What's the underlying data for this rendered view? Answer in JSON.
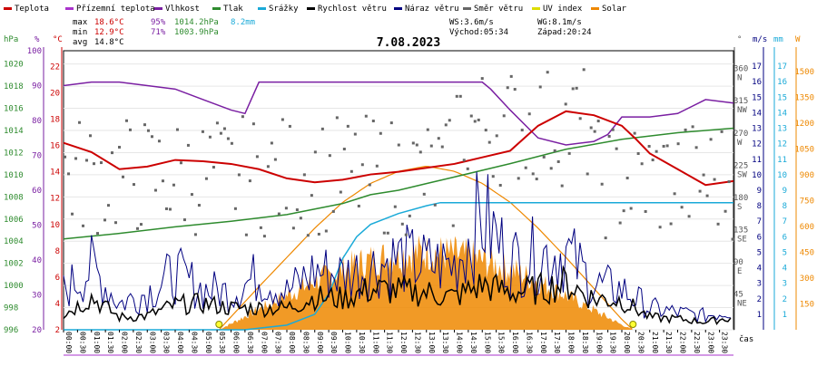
{
  "legend": [
    {
      "label": "Teplota",
      "color": "#cc0000"
    },
    {
      "label": "Přízemní teplota",
      "color": "#aa33cc"
    },
    {
      "label": "Vlhkost",
      "color": "#7a1fa2"
    },
    {
      "label": "Tlak",
      "color": "#2e8b2e"
    },
    {
      "label": "Srážky",
      "color": "#1aaad8"
    },
    {
      "label": "Rychlost větru",
      "color": "#000000"
    },
    {
      "label": "Náraz větru",
      "color": "#000080"
    },
    {
      "label": "Směr větru",
      "color": "#666666"
    },
    {
      "label": "UV index",
      "color": "#dddd00"
    },
    {
      "label": "Solar",
      "color": "#ee8800"
    }
  ],
  "stats": {
    "max_label": "max",
    "max_temp": "18.6°C",
    "max_hum": "95%",
    "max_press": "1014.2hPa",
    "rain": "8.2mm",
    "min_label": "min",
    "min_temp": "12.9°C",
    "min_hum": "71%",
    "min_press": "1003.9hPa",
    "avg_label": "avg",
    "avg_temp": "14.8°C",
    "ws": "WS:3.6m/s",
    "wg": "WG:8.1m/s",
    "sunrise": "Východ:05:34",
    "sunset": "Západ:20:24"
  },
  "date": "7.08.2023",
  "xaxis_label": "čas",
  "unit_labels": {
    "hpa": "hPa",
    "pct": "%",
    "degc": "°C",
    "deg": "°",
    "ms": "m/s",
    "mm": "mm",
    "w": "W"
  },
  "chart_data": {
    "type": "line",
    "title": "7.08.2023",
    "x_ticks": [
      "00:00",
      "00:30",
      "01:00",
      "01:30",
      "02:00",
      "02:30",
      "03:00",
      "03:30",
      "04:00",
      "04:30",
      "05:00",
      "05:30",
      "06:00",
      "06:30",
      "07:00",
      "07:30",
      "08:00",
      "08:30",
      "09:00",
      "09:30",
      "10:00",
      "10:30",
      "11:00",
      "11:30",
      "12:00",
      "12:30",
      "13:00",
      "13:30",
      "14:00",
      "14:30",
      "15:00",
      "15:30",
      "16:00",
      "16:30",
      "17:00",
      "17:30",
      "18:00",
      "18:30",
      "19:00",
      "19:30",
      "20:00",
      "20:30",
      "21:00",
      "21:30",
      "22:00",
      "22:30",
      "23:00",
      "23:30"
    ],
    "axes": {
      "pressure": {
        "label": "hPa",
        "ticks": [
          "996",
          "998",
          "1000",
          "1002",
          "1004",
          "1006",
          "1008",
          "1010",
          "1012",
          "1014",
          "1016",
          "1018",
          "1020"
        ]
      },
      "humidity": {
        "label": "%",
        "ticks": [
          "20",
          "30",
          "40",
          "50",
          "60",
          "70",
          "80",
          "90",
          "100"
        ]
      },
      "temperature": {
        "label": "°C",
        "ticks": [
          "2",
          "4",
          "6",
          "8",
          "10",
          "12",
          "14",
          "16",
          "18",
          "20",
          "22"
        ]
      },
      "direction": {
        "label": "°",
        "ticks": [
          "45 NE",
          "90 E",
          "135 SE",
          "180 S",
          "225 SW",
          "270 W",
          "315 NW",
          "360 N"
        ]
      },
      "wind": {
        "label": "m/s",
        "ticks": [
          "1",
          "2",
          "3",
          "4",
          "5",
          "6",
          "7",
          "8",
          "9",
          "10",
          "11",
          "12",
          "13",
          "14",
          "15",
          "16",
          "17"
        ]
      },
      "rain": {
        "label": "mm",
        "ticks": [
          "1",
          "2",
          "3",
          "4",
          "5",
          "6",
          "7",
          "8",
          "9",
          "10",
          "11",
          "12",
          "13",
          "14",
          "15",
          "16",
          "17"
        ]
      },
      "solar": {
        "label": "W",
        "ticks": [
          "150",
          "300",
          "450",
          "600",
          "750",
          "900",
          "1050",
          "1200",
          "1350",
          "1500"
        ]
      }
    },
    "series": [
      {
        "name": "Teplota",
        "axis": "temperature",
        "x": [
          0,
          1,
          2,
          3,
          4,
          5,
          6,
          7,
          8,
          9,
          10,
          10.5,
          11,
          12,
          13,
          14,
          15,
          16,
          17,
          18,
          19,
          20,
          20.5,
          21,
          22,
          23,
          24
        ],
        "y": [
          16.2,
          15.5,
          14.2,
          14.4,
          14.9,
          14.8,
          14.6,
          14.2,
          13.5,
          13.2,
          13.4,
          13.6,
          13.8,
          14.0,
          14.3,
          14.6,
          15.1,
          15.6,
          17.5,
          18.6,
          18.3,
          17.5,
          16.5,
          15.4,
          14.2,
          13.0,
          13.3
        ]
      },
      {
        "name": "Vlhkost",
        "axis": "humidity",
        "x": [
          0,
          1,
          2,
          3,
          4,
          5,
          6,
          6.5,
          7,
          8,
          9,
          10,
          11,
          12,
          13,
          14,
          15,
          15.3,
          16,
          17,
          18,
          19,
          19.5,
          20,
          21,
          22,
          23,
          24
        ],
        "y": [
          90,
          91,
          91,
          90,
          89,
          86,
          83,
          82,
          91,
          91,
          91,
          91,
          91,
          91,
          91,
          91,
          91,
          89,
          83,
          75,
          73,
          74,
          76,
          81,
          81,
          82,
          86,
          85
        ]
      },
      {
        "name": "Tlak",
        "axis": "pressure",
        "x": [
          0,
          2,
          4,
          6,
          8,
          10,
          11,
          12,
          13,
          14,
          16,
          18,
          20,
          22,
          24
        ],
        "y": [
          1004.2,
          1004.7,
          1005.3,
          1005.8,
          1006.4,
          1007.4,
          1008.2,
          1008.6,
          1009.2,
          1009.8,
          1011.0,
          1012.3,
          1013.2,
          1013.8,
          1014.2
        ]
      },
      {
        "name": "Srážky",
        "axis": "rain",
        "x": [
          0,
          6.5,
          7,
          8,
          9,
          9.5,
          10,
          10.5,
          11,
          12,
          13,
          13.5,
          24
        ],
        "y": [
          0,
          0,
          0.1,
          0.3,
          1.0,
          2.3,
          4.6,
          6.0,
          6.8,
          7.5,
          8.0,
          8.2,
          8.2
        ]
      },
      {
        "name": "Solar",
        "axis": "solar",
        "x": [
          5.57,
          7,
          8,
          9,
          10,
          11,
          12,
          13,
          14,
          15,
          16,
          17,
          18,
          19,
          20,
          20.4
        ],
        "y": [
          0,
          250,
          420,
          590,
          740,
          850,
          920,
          950,
          920,
          850,
          740,
          590,
          420,
          240,
          60,
          0
        ]
      },
      {
        "name": "Rychlost větru",
        "axis": "wind",
        "x": [
          0,
          1,
          2,
          3,
          4,
          5,
          6,
          7,
          8,
          9,
          10,
          11,
          12,
          13,
          14,
          15,
          16,
          17,
          18,
          19,
          20,
          21,
          22,
          23,
          24
        ],
        "y": [
          1.0,
          2.1,
          0.8,
          0.9,
          1.6,
          1.7,
          1.4,
          1.4,
          1.4,
          2.1,
          2.0,
          2.6,
          2.5,
          2.4,
          2.1,
          2.9,
          2.4,
          2.6,
          3.0,
          2.0,
          1.9,
          0.8,
          0.7,
          0.5,
          0.8
        ]
      },
      {
        "name": "Náraz větru",
        "axis": "wind",
        "x": [
          0,
          1,
          2,
          3,
          4,
          5,
          6,
          7,
          8,
          9,
          10,
          11,
          12,
          13,
          14,
          15,
          16,
          17,
          18,
          19,
          20,
          21,
          22,
          23,
          24
        ],
        "y": [
          2.5,
          4.0,
          1.7,
          2.4,
          3.6,
          2.6,
          2.4,
          3.5,
          2.4,
          3.8,
          3.5,
          4.0,
          4.6,
          4.2,
          4.2,
          7.3,
          4.4,
          4.8,
          5.0,
          2.9,
          2.6,
          1.4,
          1.1,
          0.9,
          1.3
        ]
      },
      {
        "name": "UV index",
        "axis": "uv",
        "x": [
          5.57,
          20.4
        ],
        "y": [
          0,
          0
        ]
      }
    ]
  }
}
